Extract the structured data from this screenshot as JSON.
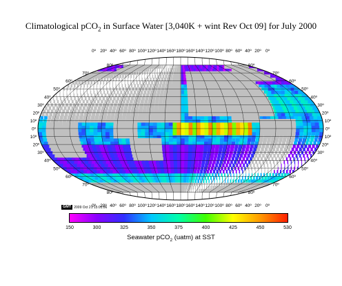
{
  "title": {
    "pre": "Climatological pCO",
    "sub": "2",
    "post": " in Surface Water [3,040K + wint Rev Oct 09] for July 2000"
  },
  "map": {
    "projection": "world map (Robinson-style), centered on the Pacific",
    "top_lon_labels": [
      "0º",
      "20º",
      "40º",
      "60º",
      "80º",
      "100º",
      "120º",
      "140º",
      "160º",
      "180º",
      "160º",
      "140º",
      "120º",
      "100º",
      "80º",
      "60º",
      "40º",
      "20º",
      "0º"
    ],
    "bottom_lon_labels": [
      "0º",
      "20º",
      "40º",
      "60º",
      "80º",
      "100º",
      "120º",
      "140º",
      "160º",
      "180º",
      "160º",
      "140º",
      "120º",
      "100º",
      "80º",
      "60º",
      "40º",
      "20º",
      "0º"
    ],
    "left_lat_labels": [
      "80º",
      "70º",
      "60º",
      "50º",
      "40º",
      "30º",
      "20º",
      "10º",
      "0º",
      "10º",
      "20º",
      "30º",
      "40º",
      "50º",
      "60º",
      "70º",
      "80º"
    ],
    "right_lat_labels": [
      "80º",
      "70º",
      "60º",
      "50º",
      "40º",
      "30º",
      "20º",
      "10º",
      "0º",
      "10º",
      "20º",
      "30º",
      "40º",
      "50º",
      "60º",
      "70º",
      "80º"
    ],
    "land_color": "#c0c0c0",
    "grid_color": "#000000"
  },
  "stamp": {
    "logo": "GMT",
    "text": "2009 Oct 21 15:01:06"
  },
  "colorbar": {
    "min": 150,
    "max": 530,
    "ticks": [
      "150",
      "300",
      "325",
      "350",
      "375",
      "400",
      "425",
      "450",
      "530"
    ],
    "colors": [
      "#ff00ff",
      "#8a00ff",
      "#3030ff",
      "#00c8ff",
      "#00ffaa",
      "#40ff00",
      "#ffff00",
      "#ff9900",
      "#ff2000"
    ],
    "label_pre": "Seawater  pCO",
    "label_sub": "2",
    "label_post": " (uatm) at SST"
  }
}
